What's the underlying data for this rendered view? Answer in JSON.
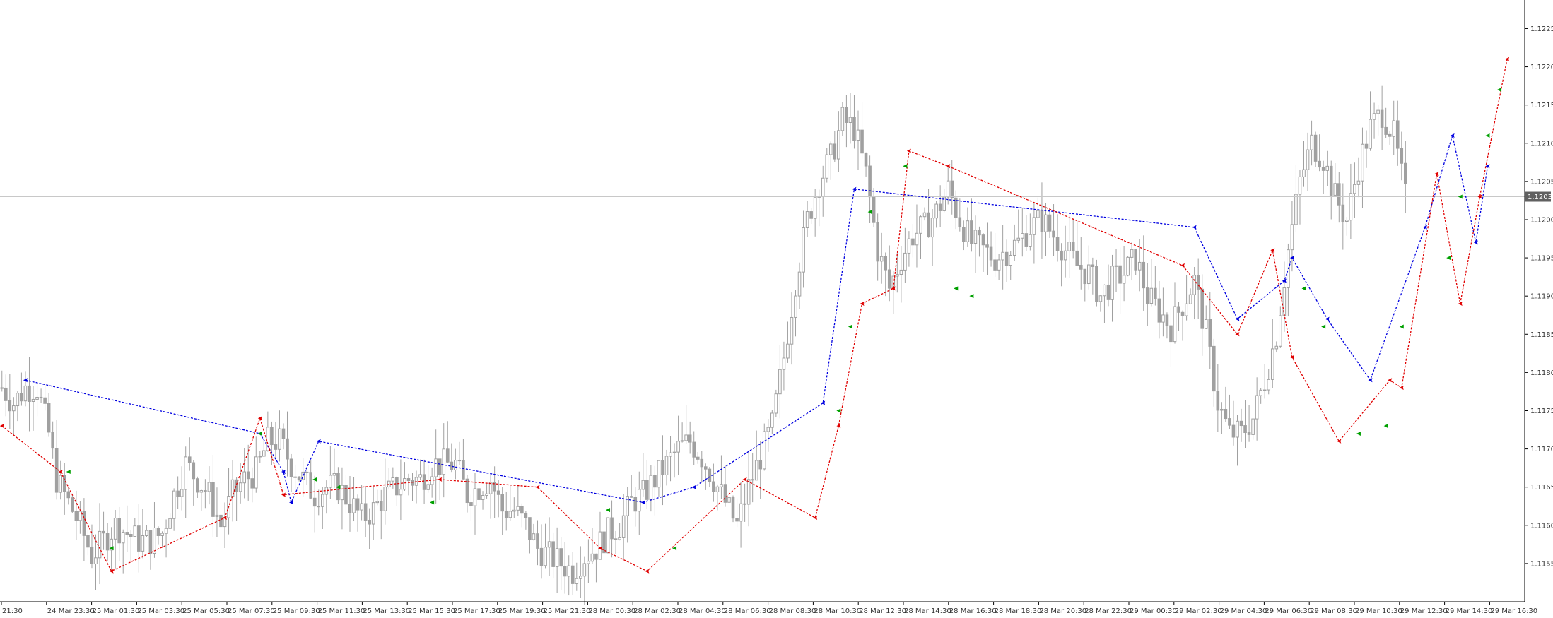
{
  "chart_data": {
    "type": "candlestick",
    "title": "",
    "xlabel": "",
    "ylabel": "",
    "ylim": [
      1.115,
      1.1228
    ],
    "grid": false,
    "current_price": "1.1203",
    "y_ticks": [
      "1.1155",
      "1.1160",
      "1.1165",
      "1.1170",
      "1.1175",
      "1.1180",
      "1.1185",
      "1.1190",
      "1.1195",
      "1.1200",
      "1.1205",
      "1.1210",
      "1.1215",
      "1.1220",
      "1.1225"
    ],
    "x_ticks": [
      "21:30",
      "24 Mar 23:30",
      "25 Mar 01:30",
      "25 Mar 03:30",
      "25 Mar 05:30",
      "25 Mar 07:30",
      "25 Mar 09:30",
      "25 Mar 11:30",
      "25 Mar 13:30",
      "25 Mar 15:30",
      "25 Mar 17:30",
      "25 Mar 19:30",
      "25 Mar 21:30",
      "28 Mar 00:30",
      "28 Mar 02:30",
      "28 Mar 04:30",
      "28 Mar 06:30",
      "28 Mar 08:30",
      "28 Mar 10:30",
      "28 Mar 12:30",
      "28 Mar 14:30",
      "28 Mar 16:30",
      "28 Mar 18:30",
      "28 Mar 20:30",
      "28 Mar 22:30",
      "29 Mar 00:30",
      "29 Mar 02:30",
      "29 Mar 04:30",
      "29 Mar 06:30",
      "29 Mar 08:30",
      "29 Mar 10:30",
      "29 Mar 12:30",
      "29 Mar 14:30",
      "29 Mar 16:30"
    ],
    "colors": {
      "candle": "#a0a0a0",
      "blue_line": "#0000e0",
      "red_line": "#e00000",
      "green_marker": "#00a000",
      "price_tag": "#606060",
      "axis": "#000000"
    },
    "close_path": [
      [
        0,
        1.1178
      ],
      [
        3,
        1.1176
      ],
      [
        6,
        1.1178
      ],
      [
        9,
        1.1178
      ],
      [
        12,
        1.1172
      ],
      [
        14,
        1.1166
      ],
      [
        17,
        1.1163
      ],
      [
        20,
        1.116
      ],
      [
        23,
        1.1156
      ],
      [
        26,
        1.1158
      ],
      [
        29,
        1.116
      ],
      [
        32,
        1.1159
      ],
      [
        35,
        1.1158
      ],
      [
        38,
        1.1158
      ],
      [
        41,
        1.1159
      ],
      [
        44,
        1.1164
      ],
      [
        47,
        1.1168
      ],
      [
        50,
        1.1166
      ],
      [
        53,
        1.1164
      ],
      [
        56,
        1.116
      ],
      [
        59,
        1.1164
      ],
      [
        62,
        1.1166
      ],
      [
        65,
        1.1167
      ],
      [
        68,
        1.1171
      ],
      [
        71,
        1.1171
      ],
      [
        74,
        1.1168
      ],
      [
        77,
        1.1166
      ],
      [
        80,
        1.1164
      ],
      [
        83,
        1.1165
      ],
      [
        86,
        1.1165
      ],
      [
        89,
        1.1163
      ],
      [
        92,
        1.1161
      ],
      [
        95,
        1.1162
      ],
      [
        98,
        1.1164
      ],
      [
        101,
        1.1165
      ],
      [
        104,
        1.1166
      ],
      [
        107,
        1.1166
      ],
      [
        110,
        1.1168
      ],
      [
        113,
        1.1168
      ],
      [
        116,
        1.1168
      ],
      [
        119,
        1.1164
      ],
      [
        122,
        1.1165
      ],
      [
        125,
        1.1166
      ],
      [
        128,
        1.1162
      ],
      [
        131,
        1.1162
      ],
      [
        134,
        1.116
      ],
      [
        137,
        1.1157
      ],
      [
        140,
        1.1156
      ],
      [
        143,
        1.1155
      ],
      [
        146,
        1.1154
      ],
      [
        149,
        1.1156
      ],
      [
        152,
        1.1157
      ],
      [
        155,
        1.1159
      ],
      [
        158,
        1.116
      ],
      [
        161,
        1.1163
      ],
      [
        164,
        1.1164
      ],
      [
        167,
        1.1166
      ],
      [
        170,
        1.1168
      ],
      [
        173,
        1.117
      ],
      [
        176,
        1.1171
      ],
      [
        179,
        1.1169
      ],
      [
        182,
        1.1166
      ],
      [
        185,
        1.1163
      ],
      [
        188,
        1.116
      ],
      [
        191,
        1.1165
      ],
      [
        194,
        1.1169
      ],
      [
        197,
        1.1173
      ],
      [
        200,
        1.1182
      ],
      [
        203,
        1.1192
      ],
      [
        206,
        1.12
      ],
      [
        209,
        1.1205
      ],
      [
        212,
        1.1208
      ],
      [
        215,
        1.1213
      ],
      [
        218,
        1.1212
      ],
      [
        221,
        1.1206
      ],
      [
        224,
        1.1196
      ],
      [
        227,
        1.1191
      ],
      [
        230,
        1.1195
      ],
      [
        233,
        1.1198
      ],
      [
        236,
        1.1199
      ],
      [
        239,
        1.1201
      ],
      [
        242,
        1.1204
      ],
      [
        245,
        1.12
      ],
      [
        248,
        1.1197
      ],
      [
        251,
        1.1196
      ],
      [
        254,
        1.1195
      ],
      [
        257,
        1.1196
      ],
      [
        260,
        1.1197
      ],
      [
        263,
        1.1199
      ],
      [
        266,
        1.12
      ],
      [
        269,
        1.1198
      ],
      [
        272,
        1.1196
      ],
      [
        275,
        1.1194
      ],
      [
        278,
        1.1193
      ],
      [
        281,
        1.119
      ],
      [
        284,
        1.1192
      ],
      [
        287,
        1.1193
      ],
      [
        290,
        1.1195
      ],
      [
        293,
        1.119
      ],
      [
        296,
        1.1188
      ],
      [
        299,
        1.1186
      ],
      [
        302,
        1.1189
      ],
      [
        305,
        1.1192
      ],
      [
        308,
        1.1185
      ],
      [
        311,
        1.1176
      ],
      [
        314,
        1.1172
      ],
      [
        317,
        1.1172
      ],
      [
        320,
        1.1174
      ],
      [
        323,
        1.1179
      ],
      [
        326,
        1.1185
      ],
      [
        329,
        1.1196
      ],
      [
        332,
        1.1205
      ],
      [
        335,
        1.121
      ],
      [
        338,
        1.1208
      ],
      [
        341,
        1.1203
      ],
      [
        344,
        1.12
      ],
      [
        347,
        1.1207
      ],
      [
        350,
        1.1212
      ],
      [
        353,
        1.1214
      ],
      [
        356,
        1.1211
      ],
      [
        359,
        1.1203
      ]
    ],
    "blue_line": [
      [
        6,
        1.1179
      ],
      [
        66,
        1.1172
      ],
      [
        72,
        1.1167
      ],
      [
        74,
        1.1163
      ],
      [
        81,
        1.1171
      ],
      [
        164,
        1.1163
      ],
      [
        177,
        1.1165
      ],
      [
        210,
        1.1176
      ],
      [
        218,
        1.1204
      ],
      [
        305,
        1.1199
      ],
      [
        316,
        1.1187
      ],
      [
        328,
        1.1192
      ],
      [
        330,
        1.1195
      ],
      [
        339,
        1.1187
      ],
      [
        350,
        1.1179
      ],
      [
        364,
        1.1199
      ],
      [
        371,
        1.1211
      ],
      [
        377,
        1.1197
      ],
      [
        380,
        1.1207
      ]
    ],
    "red_line": [
      [
        0,
        1.1173
      ],
      [
        15,
        1.1167
      ],
      [
        28,
        1.1154
      ],
      [
        57,
        1.1161
      ],
      [
        66,
        1.1174
      ],
      [
        72,
        1.1164
      ],
      [
        112,
        1.1166
      ],
      [
        137,
        1.1165
      ],
      [
        153,
        1.1157
      ],
      [
        165,
        1.1154
      ],
      [
        190,
        1.1166
      ],
      [
        208,
        1.1161
      ],
      [
        214,
        1.1173
      ],
      [
        220,
        1.1189
      ],
      [
        228,
        1.1191
      ],
      [
        232,
        1.1209
      ],
      [
        242,
        1.1207
      ],
      [
        302,
        1.1194
      ],
      [
        316,
        1.1185
      ],
      [
        325,
        1.1196
      ],
      [
        330,
        1.1182
      ],
      [
        342,
        1.1171
      ],
      [
        355,
        1.1179
      ],
      [
        358,
        1.1178
      ],
      [
        367,
        1.1206
      ],
      [
        373,
        1.1189
      ],
      [
        378,
        1.1203
      ],
      [
        385,
        1.1221
      ]
    ],
    "green_markers": [
      [
        17,
        1.1167
      ],
      [
        28,
        1.1157
      ],
      [
        66,
        1.1172
      ],
      [
        80,
        1.1166
      ],
      [
        86,
        1.1165
      ],
      [
        110,
        1.1163
      ],
      [
        155,
        1.1162
      ],
      [
        172,
        1.1157
      ],
      [
        214,
        1.1175
      ],
      [
        217,
        1.1186
      ],
      [
        222,
        1.1201
      ],
      [
        231,
        1.1207
      ],
      [
        244,
        1.1191
      ],
      [
        248,
        1.119
      ],
      [
        333,
        1.1191
      ],
      [
        338,
        1.1186
      ],
      [
        347,
        1.1172
      ],
      [
        354,
        1.1173
      ],
      [
        358,
        1.1186
      ],
      [
        370,
        1.1195
      ],
      [
        373,
        1.1203
      ],
      [
        380,
        1.1211
      ],
      [
        383,
        1.1217
      ]
    ]
  }
}
